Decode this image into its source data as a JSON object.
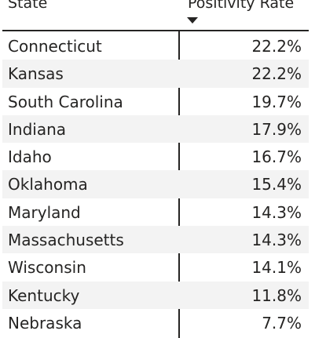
{
  "table": {
    "columns": {
      "state": "State",
      "rate": "Positivity Rate"
    },
    "sort_indicator": "sort-descending-icon",
    "rows": [
      {
        "state": "Connecticut",
        "rate": "22.2%"
      },
      {
        "state": "Kansas",
        "rate": "22.2%"
      },
      {
        "state": "South Carolina",
        "rate": "19.7%"
      },
      {
        "state": "Indiana",
        "rate": "17.9%"
      },
      {
        "state": "Idaho",
        "rate": "16.7%"
      },
      {
        "state": "Oklahoma",
        "rate": "15.4%"
      },
      {
        "state": "Maryland",
        "rate": "14.3%"
      },
      {
        "state": "Massachusetts",
        "rate": "14.3%"
      },
      {
        "state": "Wisconsin",
        "rate": "14.1%"
      },
      {
        "state": "Kentucky",
        "rate": "11.8%"
      },
      {
        "state": "Nebraska",
        "rate": "7.7%"
      }
    ]
  },
  "colors": {
    "text": "#252423",
    "alt_row": "#f3f3f3",
    "background": "#ffffff"
  }
}
